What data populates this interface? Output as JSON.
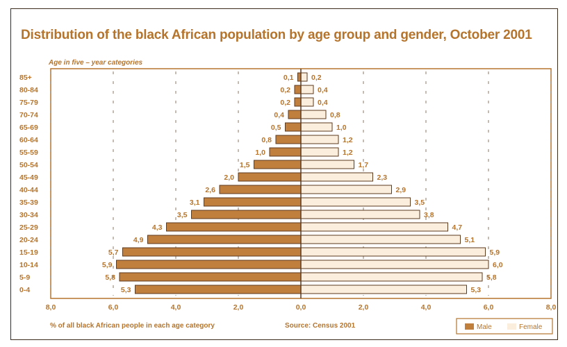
{
  "chart_data": {
    "type": "bar",
    "orientation": "horizontal-population-pyramid",
    "title": "Distribution of the black African population by age group and gender, October 2001",
    "ylabel": "Age in five – year categories",
    "xlabel": "% of all black African people in each age category",
    "source": "Source: Census 2001",
    "categories": [
      "85+",
      "80-84",
      "75-79",
      "70-74",
      "65-69",
      "60-64",
      "55-59",
      "50-54",
      "45-49",
      "40-44",
      "35-39",
      "30-34",
      "25-29",
      "20-24",
      "15-19",
      "10-14",
      "5-9",
      "0-4"
    ],
    "series": [
      {
        "name": "Male",
        "values": [
          0.1,
          0.2,
          0.2,
          0.4,
          0.5,
          0.8,
          1.0,
          1.5,
          2.0,
          2.6,
          3.1,
          3.5,
          4.3,
          4.9,
          5.7,
          5.9,
          5.8,
          5.3
        ],
        "labels": [
          "0,1",
          "0,2",
          "0,2",
          "0,4",
          "0,5",
          "0,8",
          "1,0",
          "1,5",
          "2,0",
          "2,6",
          "3,1",
          "3,5",
          "4,3",
          "4,9",
          "5,7",
          "5,9",
          "5,8",
          "5,3"
        ],
        "color": "#c17f3e"
      },
      {
        "name": "Female",
        "values": [
          0.2,
          0.4,
          0.4,
          0.8,
          1.0,
          1.2,
          1.2,
          1.7,
          2.3,
          2.9,
          3.5,
          3.8,
          4.7,
          5.1,
          5.9,
          6.0,
          5.8,
          5.3
        ],
        "labels": [
          "0,2",
          "0,4",
          "0,4",
          "0,8",
          "1,0",
          "1,2",
          "1,2",
          "1,7",
          "2,3",
          "2,9",
          "3,5",
          "3,8",
          "4,7",
          "5,1",
          "5,9",
          "6,0",
          "5,8",
          "5,3"
        ],
        "color": "#fbeedd"
      }
    ],
    "xticks": [
      {
        "value": -8,
        "label": "8,0"
      },
      {
        "value": -6,
        "label": "6,0"
      },
      {
        "value": -4,
        "label": "4,0"
      },
      {
        "value": -2,
        "label": "2,0"
      },
      {
        "value": 0,
        "label": "0,0"
      },
      {
        "value": 2,
        "label": "2,0"
      },
      {
        "value": 4,
        "label": "4,0"
      },
      {
        "value": 6,
        "label": "6,0"
      },
      {
        "value": 8,
        "label": "8,0"
      }
    ],
    "xlim": [
      -8,
      8
    ],
    "grid": "dashed vertical",
    "legend": "bottom-right"
  }
}
